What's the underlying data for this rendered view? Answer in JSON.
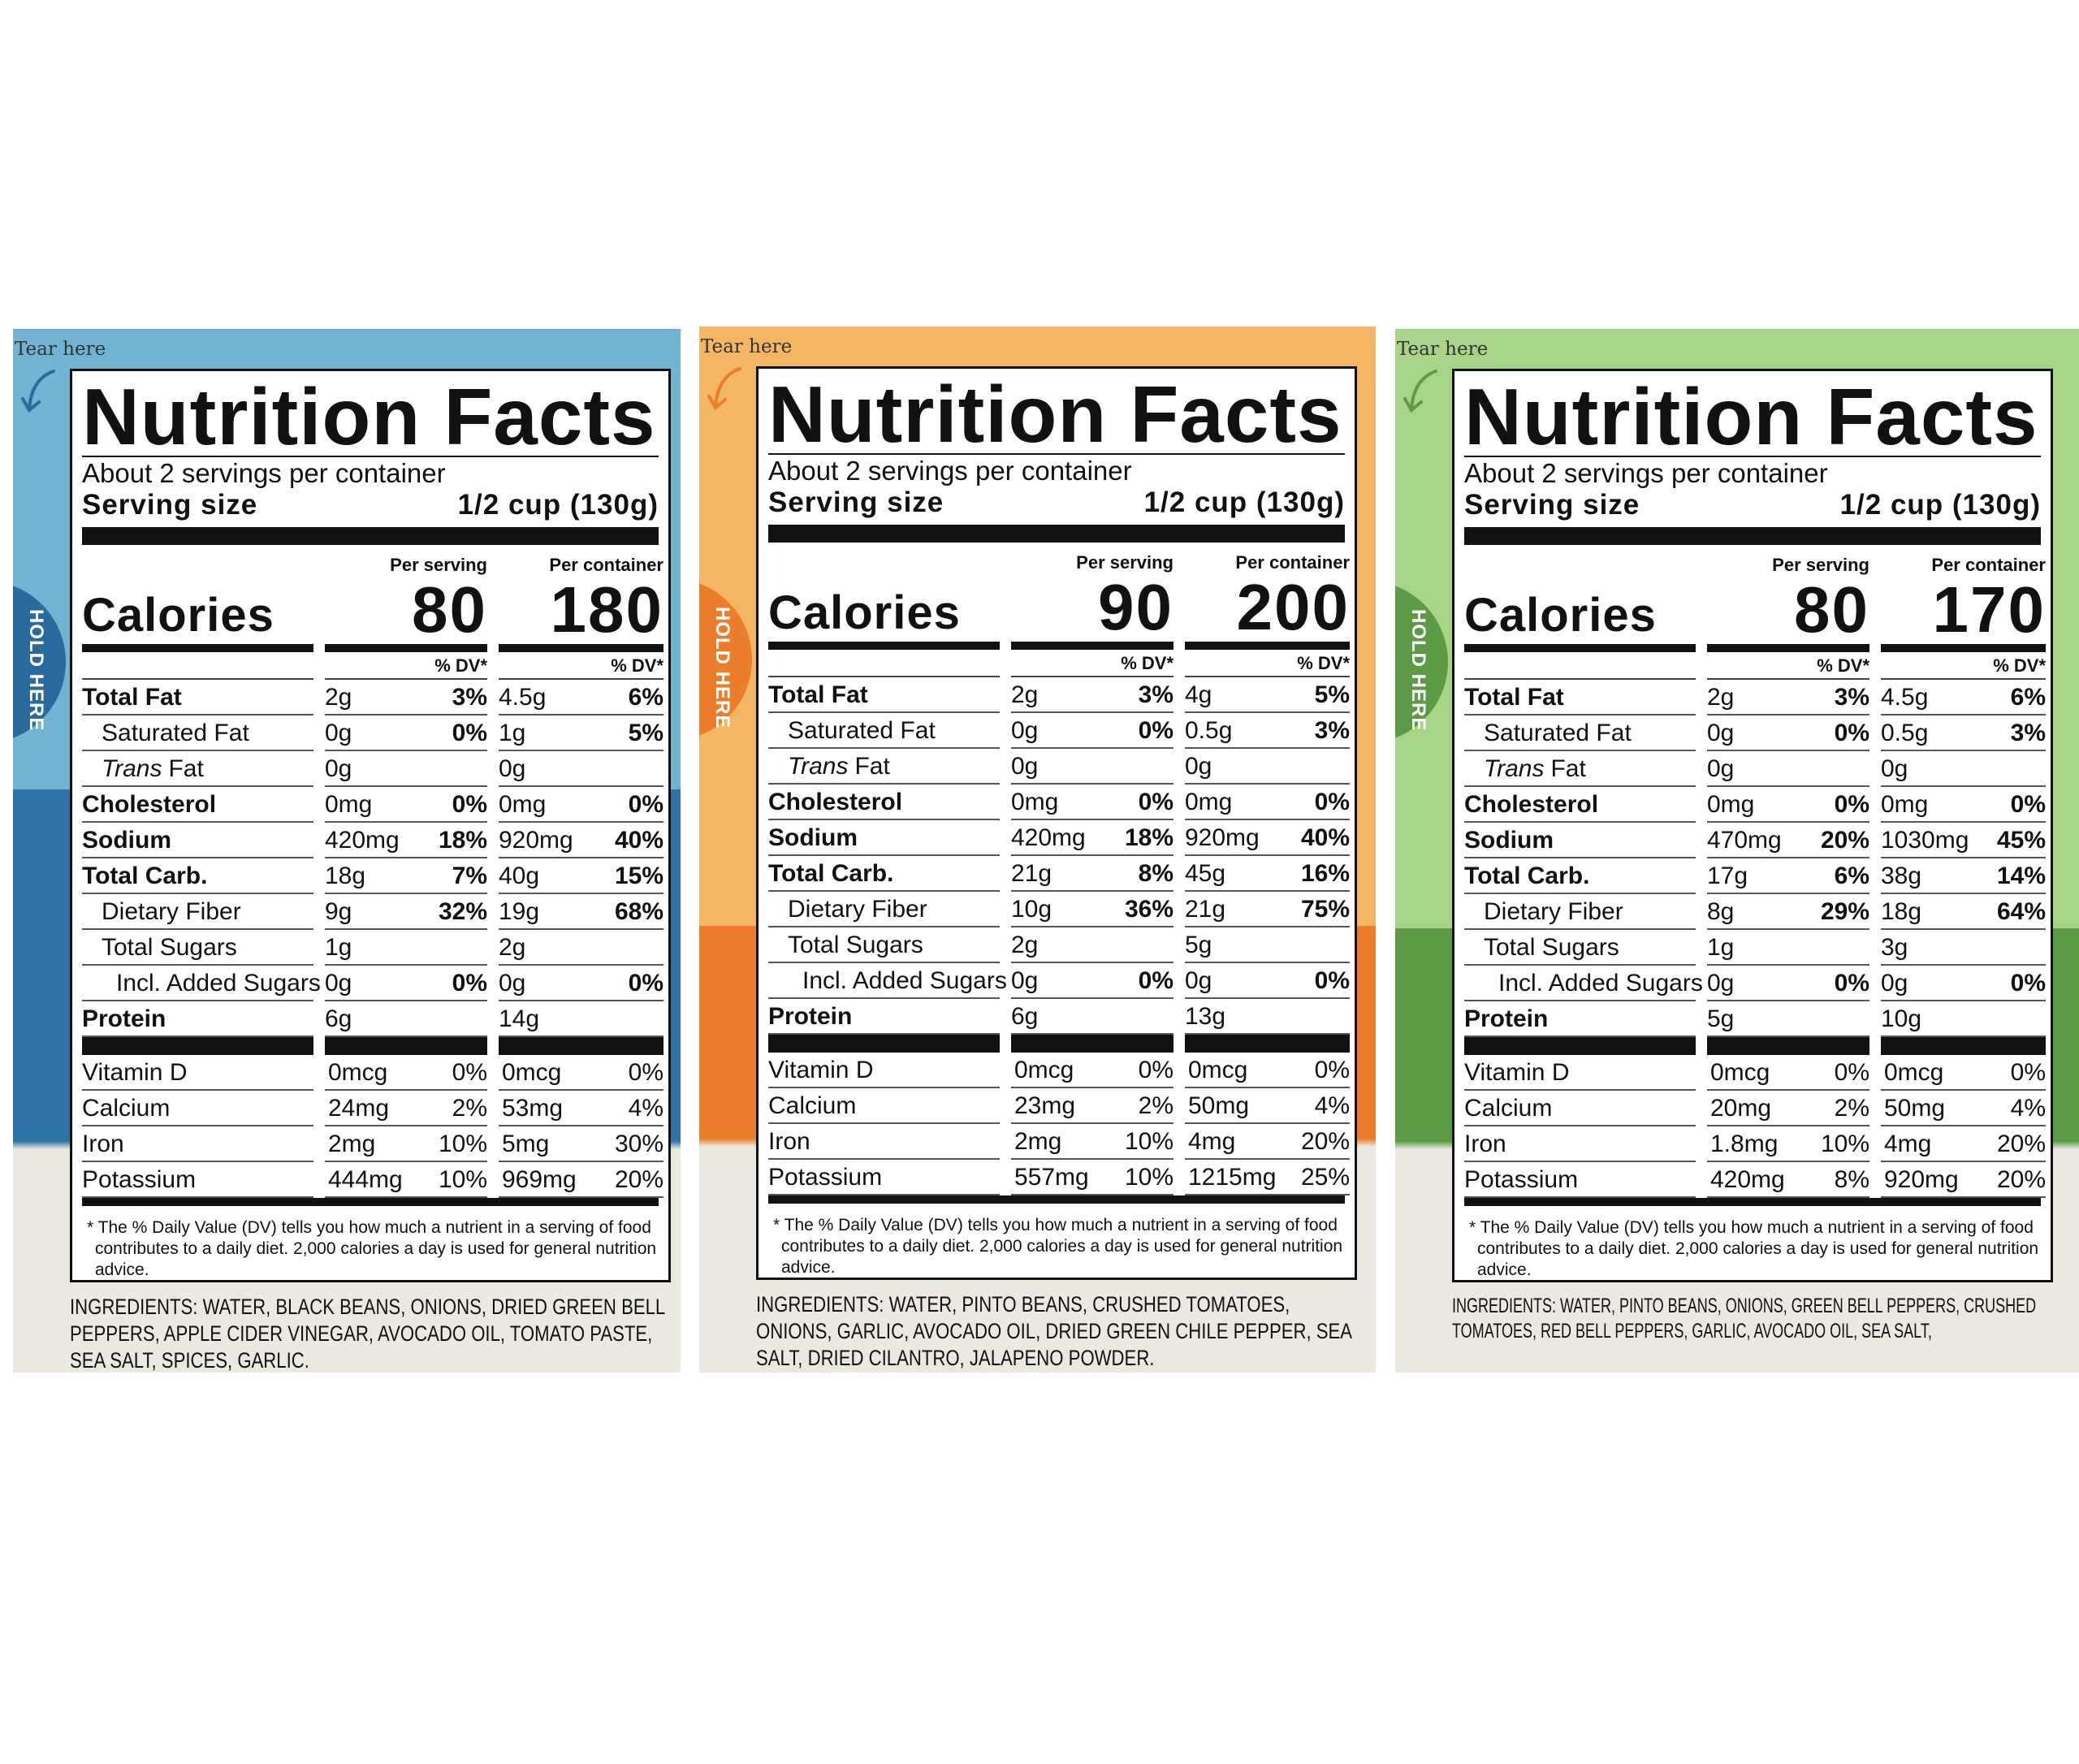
{
  "labels": [
    {
      "tear": "Tear here",
      "hold": "HOLD HERE",
      "title": "Nutrition Facts",
      "servings": "About 2 servings per container",
      "serving_size_label": "Serving size",
      "serving_size": "1/2 cup (130g)",
      "per_serving": "Per serving",
      "per_container": "Per container",
      "calories_label": "Calories",
      "calories": [
        80,
        180
      ],
      "dv_header": [
        "% DV*",
        "% DV*"
      ],
      "rows": [
        {
          "name": "Total Fat",
          "serving": [
            "2g",
            "3%"
          ],
          "container": [
            "4.5g",
            "6%"
          ]
        },
        {
          "name": "Saturated Fat",
          "serving": [
            "0g",
            "0%"
          ],
          "container": [
            "1g",
            "5%"
          ]
        },
        {
          "name_italic": "Trans",
          "name": "Fat",
          "serving": [
            "0g"
          ],
          "container": [
            "0g"
          ]
        },
        {
          "name": "Cholesterol",
          "serving": [
            "0mg",
            "0%"
          ],
          "container": [
            "0mg",
            "0%"
          ]
        },
        {
          "name": "Sodium",
          "serving": [
            "420mg",
            "18%"
          ],
          "container": [
            "920mg",
            "40%"
          ]
        },
        {
          "name": "Total Carb.",
          "serving": [
            "18g",
            "7%"
          ],
          "container": [
            "40g",
            "15%"
          ]
        },
        {
          "name": "Dietary Fiber",
          "serving": [
            "9g",
            "32%"
          ],
          "container": [
            "19g",
            "68%"
          ]
        },
        {
          "name": "Total Sugars",
          "serving": [
            "1g"
          ],
          "container": [
            "2g"
          ]
        },
        {
          "name": "Incl. Added Sugars",
          "serving": [
            "0g",
            "0%"
          ],
          "container": [
            "0g",
            "0%"
          ]
        },
        {
          "name": "Protein",
          "serving": [
            "6g"
          ],
          "container": [
            "14g"
          ]
        }
      ],
      "vitamins": [
        {
          "name": "Vitamin D",
          "serving": [
            "0mcg",
            "0%"
          ],
          "container": [
            "0mcg",
            "0%"
          ]
        },
        {
          "name": "Calcium",
          "serving": [
            "24mg",
            "2%"
          ],
          "container": [
            "53mg",
            "4%"
          ]
        },
        {
          "name": "Iron",
          "serving": [
            "2mg",
            "10%"
          ],
          "container": [
            "5mg",
            "30%"
          ]
        },
        {
          "name": "Potassium",
          "serving": [
            "444mg",
            "10%"
          ],
          "container": [
            "969mg",
            "20%"
          ]
        }
      ],
      "footnote": "* The % Daily Value (DV) tells you how much a nutrient in a serving of food contributes to a daily diet. 2,000 calories a day is used for general nutrition advice.",
      "ingredients": "INGREDIENTS: WATER, BLACK BEANS, ONIONS, DRIED GREEN BELL PEPPERS, APPLE CIDER VINEGAR, AVOCADO OIL, TOMATO PASTE, SEA SALT, SPICES, GARLIC."
    },
    {
      "tear": "Tear here",
      "hold": "HOLD HERE",
      "title": "Nutrition Facts",
      "servings": "About 2 servings per container",
      "serving_size_label": "Serving size",
      "serving_size": "1/2 cup (130g)",
      "per_serving": "Per serving",
      "per_container": "Per container",
      "calories_label": "Calories",
      "calories": [
        90,
        200
      ],
      "dv_header": [
        "% DV*",
        "% DV*"
      ],
      "rows": [
        {
          "name": "Total Fat",
          "serving": [
            "2g",
            "3%"
          ],
          "container": [
            "4g",
            "5%"
          ]
        },
        {
          "name": "Saturated Fat",
          "serving": [
            "0g",
            "0%"
          ],
          "container": [
            "0.5g",
            "3%"
          ]
        },
        {
          "name_italic": "Trans",
          "name": "Fat",
          "serving": [
            "0g"
          ],
          "container": [
            "0g"
          ]
        },
        {
          "name": "Cholesterol",
          "serving": [
            "0mg",
            "0%"
          ],
          "container": [
            "0mg",
            "0%"
          ]
        },
        {
          "name": "Sodium",
          "serving": [
            "420mg",
            "18%"
          ],
          "container": [
            "920mg",
            "40%"
          ]
        },
        {
          "name": "Total Carb.",
          "serving": [
            "21g",
            "8%"
          ],
          "container": [
            "45g",
            "16%"
          ]
        },
        {
          "name": "Dietary Fiber",
          "serving": [
            "10g",
            "36%"
          ],
          "container": [
            "21g",
            "75%"
          ]
        },
        {
          "name": "Total Sugars",
          "serving": [
            "2g"
          ],
          "container": [
            "5g"
          ]
        },
        {
          "name": "Incl. Added Sugars",
          "serving": [
            "0g",
            "0%"
          ],
          "container": [
            "0g",
            "0%"
          ]
        },
        {
          "name": "Protein",
          "serving": [
            "6g"
          ],
          "container": [
            "13g"
          ]
        }
      ],
      "vitamins": [
        {
          "name": "Vitamin D",
          "serving": [
            "0mcg",
            "0%"
          ],
          "container": [
            "0mcg",
            "0%"
          ]
        },
        {
          "name": "Calcium",
          "serving": [
            "23mg",
            "2%"
          ],
          "container": [
            "50mg",
            "4%"
          ]
        },
        {
          "name": "Iron",
          "serving": [
            "2mg",
            "10%"
          ],
          "container": [
            "4mg",
            "20%"
          ]
        },
        {
          "name": "Potassium",
          "serving": [
            "557mg",
            "10%"
          ],
          "container": [
            "1215mg",
            "25%"
          ]
        }
      ],
      "footnote": "* The % Daily Value (DV) tells you how much a nutrient in a serving of food contributes to a daily diet. 2,000 calories a day is used for general nutrition advice.",
      "ingredients": "INGREDIENTS: WATER, PINTO BEANS, CRUSHED TOMATOES, ONIONS, GARLIC, AVOCADO OIL, DRIED GREEN CHILE PEPPER, SEA SALT, DRIED CILANTRO, JALAPENO POWDER."
    },
    {
      "tear": "Tear here",
      "hold": "HOLD HERE",
      "title": "Nutrition Facts",
      "servings": "About 2 servings per container",
      "serving_size_label": "Serving size",
      "serving_size": "1/2 cup (130g)",
      "per_serving": "Per serving",
      "per_container": "Per container",
      "calories_label": "Calories",
      "calories": [
        80,
        170
      ],
      "dv_header": [
        "% DV*",
        "% DV*"
      ],
      "rows": [
        {
          "name": "Total Fat",
          "serving": [
            "2g",
            "3%"
          ],
          "container": [
            "4.5g",
            "6%"
          ]
        },
        {
          "name": "Saturated Fat",
          "serving": [
            "0g",
            "0%"
          ],
          "container": [
            "0.5g",
            "3%"
          ]
        },
        {
          "name_italic": "Trans",
          "name": "Fat",
          "serving": [
            "0g"
          ],
          "container": [
            "0g"
          ]
        },
        {
          "name": "Cholesterol",
          "serving": [
            "0mg",
            "0%"
          ],
          "container": [
            "0mg",
            "0%"
          ]
        },
        {
          "name": "Sodium",
          "serving": [
            "470mg",
            "20%"
          ],
          "container": [
            "1030mg",
            "45%"
          ]
        },
        {
          "name": "Total Carb.",
          "serving": [
            "17g",
            "6%"
          ],
          "container": [
            "38g",
            "14%"
          ]
        },
        {
          "name": "Dietary Fiber",
          "serving": [
            "8g",
            "29%"
          ],
          "container": [
            "18g",
            "64%"
          ]
        },
        {
          "name": "Total Sugars",
          "serving": [
            "1g"
          ],
          "container": [
            "3g"
          ]
        },
        {
          "name": "Incl. Added Sugars",
          "serving": [
            "0g",
            "0%"
          ],
          "container": [
            "0g",
            "0%"
          ]
        },
        {
          "name": "Protein",
          "serving": [
            "5g"
          ],
          "container": [
            "10g"
          ]
        }
      ],
      "vitamins": [
        {
          "name": "Vitamin D",
          "serving": [
            "0mcg",
            "0%"
          ],
          "container": [
            "0mcg",
            "0%"
          ]
        },
        {
          "name": "Calcium",
          "serving": [
            "20mg",
            "2%"
          ],
          "container": [
            "50mg",
            "4%"
          ]
        },
        {
          "name": "Iron",
          "serving": [
            "1.8mg",
            "10%"
          ],
          "container": [
            "4mg",
            "20%"
          ]
        },
        {
          "name": "Potassium",
          "serving": [
            "420mg",
            "8%"
          ],
          "container": [
            "920mg",
            "20%"
          ]
        }
      ],
      "footnote": "* The % Daily Value (DV) tells you how much a nutrient in a serving of food contributes to a daily diet. 2,000 calories a day is used for general nutrition advice.",
      "ingredients": "INGREDIENTS: WATER, PINTO BEANS, ONIONS, GREEN BELL PEPPERS, CRUSHED TOMATOES, RED BELL PEPPERS, GARLIC, AVOCADO OIL, SEA SALT,"
    }
  ]
}
